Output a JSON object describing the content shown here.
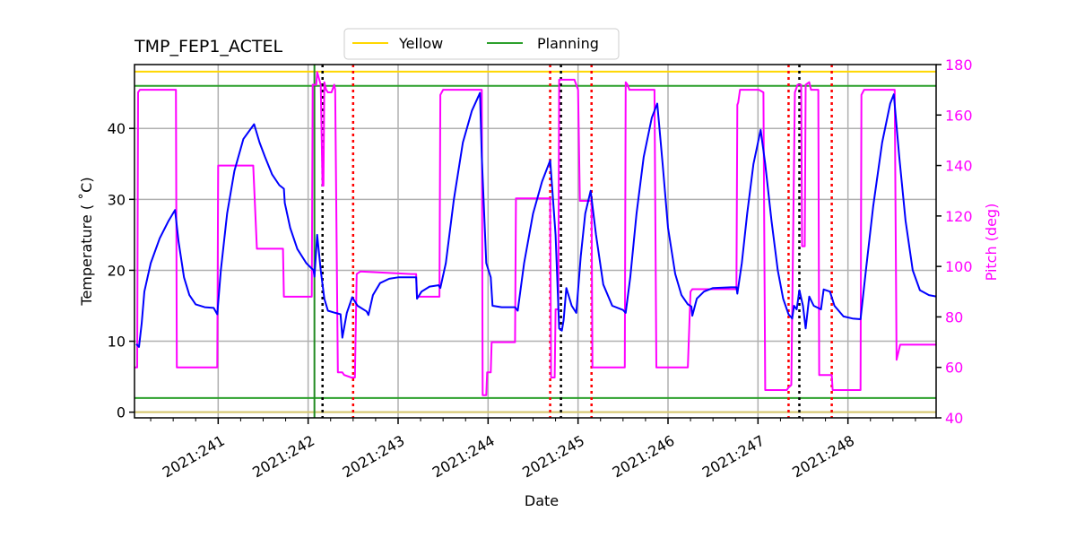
{
  "chart_data": {
    "type": "line",
    "title": "TMP_FEP1_ACTEL",
    "xlabel": "Date",
    "ylabel": "Temperature ($^\\circ$C)",
    "ylabel_display": "Temperature ( ˚C)",
    "ylabel_right": "Pitch (deg)",
    "xlim": [
      240.07,
      248.98
    ],
    "ylim": [
      -0.8,
      49.0
    ],
    "ylim_right": [
      40,
      180
    ],
    "grid": true,
    "x_ticks": [
      241,
      242,
      243,
      244,
      245,
      246,
      247,
      248
    ],
    "x_tick_labels": [
      "2021:241",
      "2021:242",
      "2021:243",
      "2021:244",
      "2021:245",
      "2021:246",
      "2021:247",
      "2021:248"
    ],
    "y_ticks": [
      0,
      10,
      20,
      30,
      40
    ],
    "y_ticks_right": [
      40,
      60,
      80,
      100,
      120,
      140,
      160,
      180
    ],
    "legend": {
      "position": "top-center-outside",
      "entries": [
        {
          "label": "Yellow",
          "color": "#ffd700"
        },
        {
          "label": "Planning",
          "color": "#2ca02c"
        }
      ]
    },
    "horizontal_lines": [
      {
        "name": "yellow-limit",
        "y": 48.0,
        "color": "#ffd700"
      },
      {
        "name": "planning-limit-high",
        "y": 46.0,
        "color": "#2ca02c"
      },
      {
        "name": "planning-limit-low",
        "y": 2.0,
        "color": "#2ca02c"
      },
      {
        "name": "yellow-limit-low",
        "y": 0.0,
        "color": "#d4c56a"
      }
    ],
    "vertical_lines": [
      {
        "x": 242.07,
        "color": "#228b22",
        "style": "solid"
      },
      {
        "x": 242.16,
        "color": "#000000",
        "style": "dotted"
      },
      {
        "x": 242.5,
        "color": "#ff0000",
        "style": "dotted"
      },
      {
        "x": 244.69,
        "color": "#ff0000",
        "style": "dotted"
      },
      {
        "x": 244.81,
        "color": "#000000",
        "style": "dotted"
      },
      {
        "x": 245.15,
        "color": "#ff0000",
        "style": "dotted"
      },
      {
        "x": 247.34,
        "color": "#ff0000",
        "style": "dotted"
      },
      {
        "x": 247.46,
        "color": "#000000",
        "style": "dotted"
      },
      {
        "x": 247.82,
        "color": "#ff0000",
        "style": "dotted"
      }
    ],
    "series": [
      {
        "name": "TMP_FEP1_ACTEL",
        "axis": "left",
        "color": "#0000ff",
        "points": [
          [
            240.09,
            9.6
          ],
          [
            240.12,
            9.2
          ],
          [
            240.15,
            12.5
          ],
          [
            240.18,
            17.0
          ],
          [
            240.25,
            21.0
          ],
          [
            240.35,
            24.5
          ],
          [
            240.45,
            27.0
          ],
          [
            240.52,
            28.5
          ],
          [
            240.56,
            24.0
          ],
          [
            240.62,
            19.0
          ],
          [
            240.68,
            16.5
          ],
          [
            240.75,
            15.2
          ],
          [
            240.85,
            14.8
          ],
          [
            240.95,
            14.7
          ],
          [
            240.99,
            13.8
          ],
          [
            241.03,
            20.0
          ],
          [
            241.1,
            28.0
          ],
          [
            241.18,
            34.0
          ],
          [
            241.28,
            38.5
          ],
          [
            241.4,
            40.6
          ],
          [
            241.46,
            38.0
          ],
          [
            241.52,
            36.0
          ],
          [
            241.6,
            33.5
          ],
          [
            241.68,
            32.0
          ],
          [
            241.73,
            31.5
          ],
          [
            241.74,
            29.5
          ],
          [
            241.8,
            26.0
          ],
          [
            241.88,
            23.0
          ],
          [
            241.98,
            21.0
          ],
          [
            242.06,
            20.0
          ],
          [
            242.07,
            19.1
          ],
          [
            242.1,
            25.0
          ],
          [
            242.14,
            20.0
          ],
          [
            242.18,
            16.0
          ],
          [
            242.22,
            14.3
          ],
          [
            242.3,
            14.0
          ],
          [
            242.36,
            13.8
          ],
          [
            242.38,
            10.5
          ],
          [
            242.43,
            14.0
          ],
          [
            242.49,
            16.2
          ],
          [
            242.55,
            15.0
          ],
          [
            242.65,
            14.2
          ],
          [
            242.67,
            13.7
          ],
          [
            242.72,
            16.5
          ],
          [
            242.8,
            18.2
          ],
          [
            242.9,
            18.8
          ],
          [
            243.0,
            19.0
          ],
          [
            243.15,
            19.0
          ],
          [
            243.2,
            19.0
          ],
          [
            243.21,
            16.0
          ],
          [
            243.26,
            17.0
          ],
          [
            243.35,
            17.7
          ],
          [
            243.45,
            17.9
          ],
          [
            243.47,
            17.5
          ],
          [
            243.53,
            21.0
          ],
          [
            243.62,
            30.0
          ],
          [
            243.72,
            38.0
          ],
          [
            243.82,
            42.5
          ],
          [
            243.91,
            45.0
          ],
          [
            243.93,
            36.0
          ],
          [
            243.98,
            21.0
          ],
          [
            244.03,
            19.0
          ],
          [
            244.05,
            15.0
          ],
          [
            244.15,
            14.8
          ],
          [
            244.3,
            14.8
          ],
          [
            244.33,
            14.3
          ],
          [
            244.4,
            21.0
          ],
          [
            244.5,
            28.0
          ],
          [
            244.6,
            32.5
          ],
          [
            244.69,
            35.5
          ],
          [
            244.75,
            25.0
          ],
          [
            244.79,
            11.8
          ],
          [
            244.82,
            11.5
          ],
          [
            244.84,
            13.0
          ],
          [
            244.87,
            17.5
          ],
          [
            244.93,
            15.0
          ],
          [
            244.98,
            14.0
          ],
          [
            245.03,
            22.0
          ],
          [
            245.08,
            28.0
          ],
          [
            245.14,
            31.2
          ],
          [
            245.2,
            25.0
          ],
          [
            245.28,
            18.0
          ],
          [
            245.38,
            15.0
          ],
          [
            245.5,
            14.4
          ],
          [
            245.53,
            14.0
          ],
          [
            245.58,
            19.0
          ],
          [
            245.65,
            28.0
          ],
          [
            245.73,
            36.0
          ],
          [
            245.82,
            41.5
          ],
          [
            245.88,
            43.5
          ],
          [
            245.94,
            35.0
          ],
          [
            246.0,
            26.0
          ],
          [
            246.08,
            19.5
          ],
          [
            246.15,
            16.5
          ],
          [
            246.22,
            15.2
          ],
          [
            246.26,
            14.9
          ],
          [
            246.27,
            13.6
          ],
          [
            246.32,
            16.0
          ],
          [
            246.4,
            17.0
          ],
          [
            246.5,
            17.5
          ],
          [
            246.7,
            17.6
          ],
          [
            246.76,
            17.6
          ],
          [
            246.77,
            16.7
          ],
          [
            246.82,
            21.0
          ],
          [
            246.88,
            28.0
          ],
          [
            246.95,
            35.0
          ],
          [
            247.03,
            39.8
          ],
          [
            247.08,
            35.0
          ],
          [
            247.15,
            27.0
          ],
          [
            247.22,
            20.0
          ],
          [
            247.28,
            16.0
          ],
          [
            247.34,
            13.8
          ],
          [
            247.38,
            13.2
          ],
          [
            247.4,
            15.0
          ],
          [
            247.43,
            14.5
          ],
          [
            247.46,
            17.2
          ],
          [
            247.5,
            15.0
          ],
          [
            247.53,
            11.8
          ],
          [
            247.57,
            16.3
          ],
          [
            247.62,
            15.0
          ],
          [
            247.7,
            14.5
          ],
          [
            247.73,
            17.3
          ],
          [
            247.8,
            17.0
          ],
          [
            247.85,
            15.0
          ],
          [
            247.95,
            13.5
          ],
          [
            248.05,
            13.2
          ],
          [
            248.14,
            13.1
          ],
          [
            248.2,
            20.0
          ],
          [
            248.28,
            29.0
          ],
          [
            248.38,
            38.0
          ],
          [
            248.47,
            43.5
          ],
          [
            248.51,
            44.8
          ],
          [
            248.57,
            36.0
          ],
          [
            248.64,
            27.0
          ],
          [
            248.72,
            20.0
          ],
          [
            248.8,
            17.2
          ],
          [
            248.9,
            16.5
          ],
          [
            248.98,
            16.3
          ]
        ]
      },
      {
        "name": "Pitch",
        "axis": "right",
        "color": "#ff00ff",
        "points": [
          [
            240.07,
            60
          ],
          [
            240.1,
            60
          ],
          [
            240.11,
            169
          ],
          [
            240.13,
            170
          ],
          [
            240.48,
            170
          ],
          [
            240.53,
            170
          ],
          [
            240.54,
            60
          ],
          [
            240.98,
            60
          ],
          [
            240.99,
            60
          ],
          [
            241.0,
            140
          ],
          [
            241.39,
            140
          ],
          [
            241.43,
            107
          ],
          [
            241.72,
            107
          ],
          [
            241.73,
            88
          ],
          [
            242.03,
            88
          ],
          [
            242.04,
            88
          ],
          [
            242.05,
            172
          ],
          [
            242.09,
            172
          ],
          [
            242.1,
            177
          ],
          [
            242.14,
            172
          ],
          [
            242.16,
            132
          ],
          [
            242.17,
            132
          ],
          [
            242.18,
            173
          ],
          [
            242.2,
            170
          ],
          [
            242.22,
            169
          ],
          [
            242.26,
            169
          ],
          [
            242.29,
            172
          ],
          [
            242.3,
            170
          ],
          [
            242.33,
            58
          ],
          [
            242.38,
            58
          ],
          [
            242.4,
            57
          ],
          [
            242.48,
            56
          ],
          [
            242.52,
            56
          ],
          [
            242.54,
            97
          ],
          [
            242.58,
            98
          ],
          [
            243.15,
            97
          ],
          [
            243.2,
            97
          ],
          [
            243.21,
            88
          ],
          [
            243.46,
            88
          ],
          [
            243.47,
            168
          ],
          [
            243.5,
            170
          ],
          [
            243.51,
            170
          ],
          [
            243.91,
            170
          ],
          [
            243.93,
            170
          ],
          [
            243.94,
            49
          ],
          [
            243.98,
            49
          ],
          [
            243.99,
            58
          ],
          [
            244.03,
            58
          ],
          [
            244.04,
            70
          ],
          [
            244.28,
            70
          ],
          [
            244.3,
            70
          ],
          [
            244.31,
            127
          ],
          [
            244.67,
            127
          ],
          [
            244.69,
            127
          ],
          [
            244.7,
            56
          ],
          [
            244.74,
            56
          ],
          [
            244.75,
            83
          ],
          [
            244.78,
            83
          ],
          [
            244.79,
            174
          ],
          [
            244.82,
            174
          ],
          [
            244.83,
            174
          ],
          [
            244.96,
            174
          ],
          [
            245.0,
            170
          ],
          [
            245.02,
            126
          ],
          [
            245.13,
            126
          ],
          [
            245.15,
            126
          ],
          [
            245.16,
            60
          ],
          [
            245.5,
            60
          ],
          [
            245.52,
            60
          ],
          [
            245.53,
            173
          ],
          [
            245.55,
            172
          ],
          [
            245.57,
            170
          ],
          [
            245.83,
            170
          ],
          [
            245.85,
            170
          ],
          [
            245.87,
            60
          ],
          [
            246.2,
            60
          ],
          [
            246.22,
            60
          ],
          [
            246.25,
            90
          ],
          [
            246.27,
            91
          ],
          [
            246.7,
            91
          ],
          [
            246.76,
            91
          ],
          [
            246.77,
            164
          ],
          [
            246.78,
            165
          ],
          [
            246.8,
            170
          ],
          [
            247.01,
            170
          ],
          [
            247.06,
            169
          ],
          [
            247.08,
            51
          ],
          [
            247.32,
            51
          ],
          [
            247.34,
            52
          ],
          [
            247.37,
            53
          ],
          [
            247.41,
            169
          ],
          [
            247.44,
            172
          ],
          [
            247.46,
            172
          ],
          [
            247.48,
            172
          ],
          [
            247.49,
            108
          ],
          [
            247.52,
            108
          ],
          [
            247.53,
            172
          ],
          [
            247.57,
            173
          ],
          [
            247.59,
            170
          ],
          [
            247.66,
            170
          ],
          [
            247.67,
            170
          ],
          [
            247.68,
            57
          ],
          [
            247.8,
            57
          ],
          [
            247.82,
            57
          ],
          [
            247.83,
            51
          ],
          [
            248.12,
            51
          ],
          [
            248.14,
            51
          ],
          [
            248.15,
            168
          ],
          [
            248.18,
            170
          ],
          [
            248.52,
            170
          ],
          [
            248.54,
            63
          ],
          [
            248.56,
            66
          ],
          [
            248.58,
            69
          ],
          [
            248.98,
            69
          ]
        ]
      }
    ]
  }
}
